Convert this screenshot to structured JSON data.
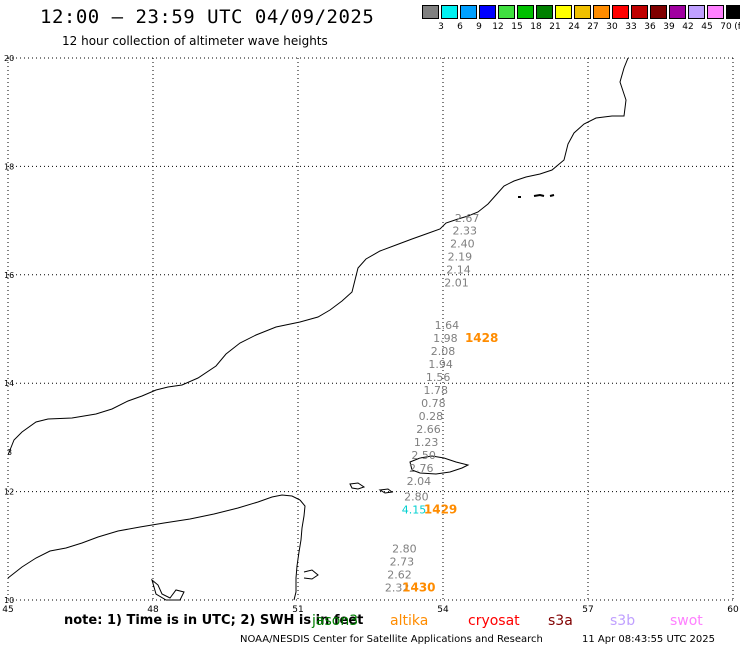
{
  "header": {
    "title": "12:00 – 23:59 UTC 04/09/2025",
    "subtitle": "12 hour collection of altimeter wave heights"
  },
  "legend": {
    "unit": "(ft)",
    "bins": [
      {
        "label": "3",
        "color": "#808080"
      },
      {
        "label": "6",
        "color": "#00f0f0"
      },
      {
        "label": "9",
        "color": "#00a0ff"
      },
      {
        "label": "12",
        "color": "#0000ff"
      },
      {
        "label": "15",
        "color": "#40e040"
      },
      {
        "label": "18",
        "color": "#00c000"
      },
      {
        "label": "21",
        "color": "#008000"
      },
      {
        "label": "24",
        "color": "#ffff00"
      },
      {
        "label": "27",
        "color": "#f0c000"
      },
      {
        "label": "30",
        "color": "#ff8c00"
      },
      {
        "label": "33",
        "color": "#ff0000"
      },
      {
        "label": "36",
        "color": "#c00000"
      },
      {
        "label": "39",
        "color": "#800000"
      },
      {
        "label": "42",
        "color": "#a000a0"
      },
      {
        "label": "45",
        "color": "#c0a0ff"
      },
      {
        "label": "70",
        "color": "#ff80ff"
      },
      {
        "label": "",
        "color": "#000000"
      }
    ]
  },
  "map": {
    "lon_ticks": [
      "45",
      "48",
      "51",
      "54",
      "57",
      "60"
    ],
    "lat_ticks": [
      "20",
      "18",
      "16",
      "14",
      "12",
      "10"
    ],
    "coast_labels": [
      "3"
    ],
    "wave_heights": [
      {
        "value": "2.67",
        "lon": 54.5,
        "lat": 16.97,
        "color": "#808080"
      },
      {
        "value": "2.33",
        "lon": 54.45,
        "lat": 16.74,
        "color": "#808080"
      },
      {
        "value": "2.40",
        "lon": 54.4,
        "lat": 16.5,
        "color": "#808080"
      },
      {
        "value": "2.19",
        "lon": 54.35,
        "lat": 16.26,
        "color": "#808080"
      },
      {
        "value": "2.14",
        "lon": 54.32,
        "lat": 16.02,
        "color": "#808080"
      },
      {
        "value": "2.01",
        "lon": 54.28,
        "lat": 15.78,
        "color": "#808080"
      },
      {
        "value": "1.64",
        "lon": 54.08,
        "lat": 15.0,
        "color": "#808080"
      },
      {
        "value": "1.98",
        "lon": 54.05,
        "lat": 14.76,
        "color": "#808080"
      },
      {
        "value": "2.08",
        "lon": 54.0,
        "lat": 14.52,
        "color": "#808080"
      },
      {
        "value": "1.94",
        "lon": 53.95,
        "lat": 14.28,
        "color": "#808080"
      },
      {
        "value": "1.56",
        "lon": 53.9,
        "lat": 14.04,
        "color": "#808080"
      },
      {
        "value": "1.78",
        "lon": 53.85,
        "lat": 13.8,
        "color": "#808080"
      },
      {
        "value": "0.78",
        "lon": 53.8,
        "lat": 13.56,
        "color": "#808080"
      },
      {
        "value": "0.28",
        "lon": 53.75,
        "lat": 13.32,
        "color": "#808080"
      },
      {
        "value": "2.66",
        "lon": 53.7,
        "lat": 13.08,
        "color": "#808080"
      },
      {
        "value": "1.23",
        "lon": 53.65,
        "lat": 12.84,
        "color": "#808080"
      },
      {
        "value": "2.50",
        "lon": 53.6,
        "lat": 12.6,
        "color": "#808080"
      },
      {
        "value": "2.76",
        "lon": 53.55,
        "lat": 12.36,
        "color": "#808080"
      },
      {
        "value": "2.04",
        "lon": 53.5,
        "lat": 12.12,
        "color": "#808080"
      },
      {
        "value": "2.80",
        "lon": 53.45,
        "lat": 11.84,
        "color": "#808080"
      },
      {
        "value": "4.15",
        "lon": 53.4,
        "lat": 11.6,
        "color": "#00d0d0"
      },
      {
        "value": "2.80",
        "lon": 53.2,
        "lat": 10.88,
        "color": "#808080"
      },
      {
        "value": "2.73",
        "lon": 53.15,
        "lat": 10.64,
        "color": "#808080"
      },
      {
        "value": "2.62",
        "lon": 53.1,
        "lat": 10.4,
        "color": "#808080"
      },
      {
        "value": "2.32",
        "lon": 53.05,
        "lat": 10.16,
        "color": "#808080"
      }
    ],
    "pass_times": [
      {
        "value": "1428",
        "lon": 54.8,
        "lat": 14.76
      },
      {
        "value": "1429",
        "lon": 53.95,
        "lat": 11.6
      },
      {
        "value": "1430",
        "lon": 53.5,
        "lat": 10.16
      }
    ]
  },
  "footer": {
    "note": "note: 1) Time is in UTC; 2) SWH is in feet",
    "satellites": [
      {
        "name": "jason3",
        "color": "#008000"
      },
      {
        "name": "altika",
        "color": "#ff8c00"
      },
      {
        "name": "cryosat",
        "color": "#ff0000"
      },
      {
        "name": "s3a",
        "color": "#800000"
      },
      {
        "name": "s3b",
        "color": "#c0a0ff"
      },
      {
        "name": "swot",
        "color": "#ff80ff"
      }
    ],
    "credit": "NOAA/NESDIS Center for Satellite Applications and Research",
    "timestamp": "11 Apr 08:43:55 UTC 2025"
  }
}
